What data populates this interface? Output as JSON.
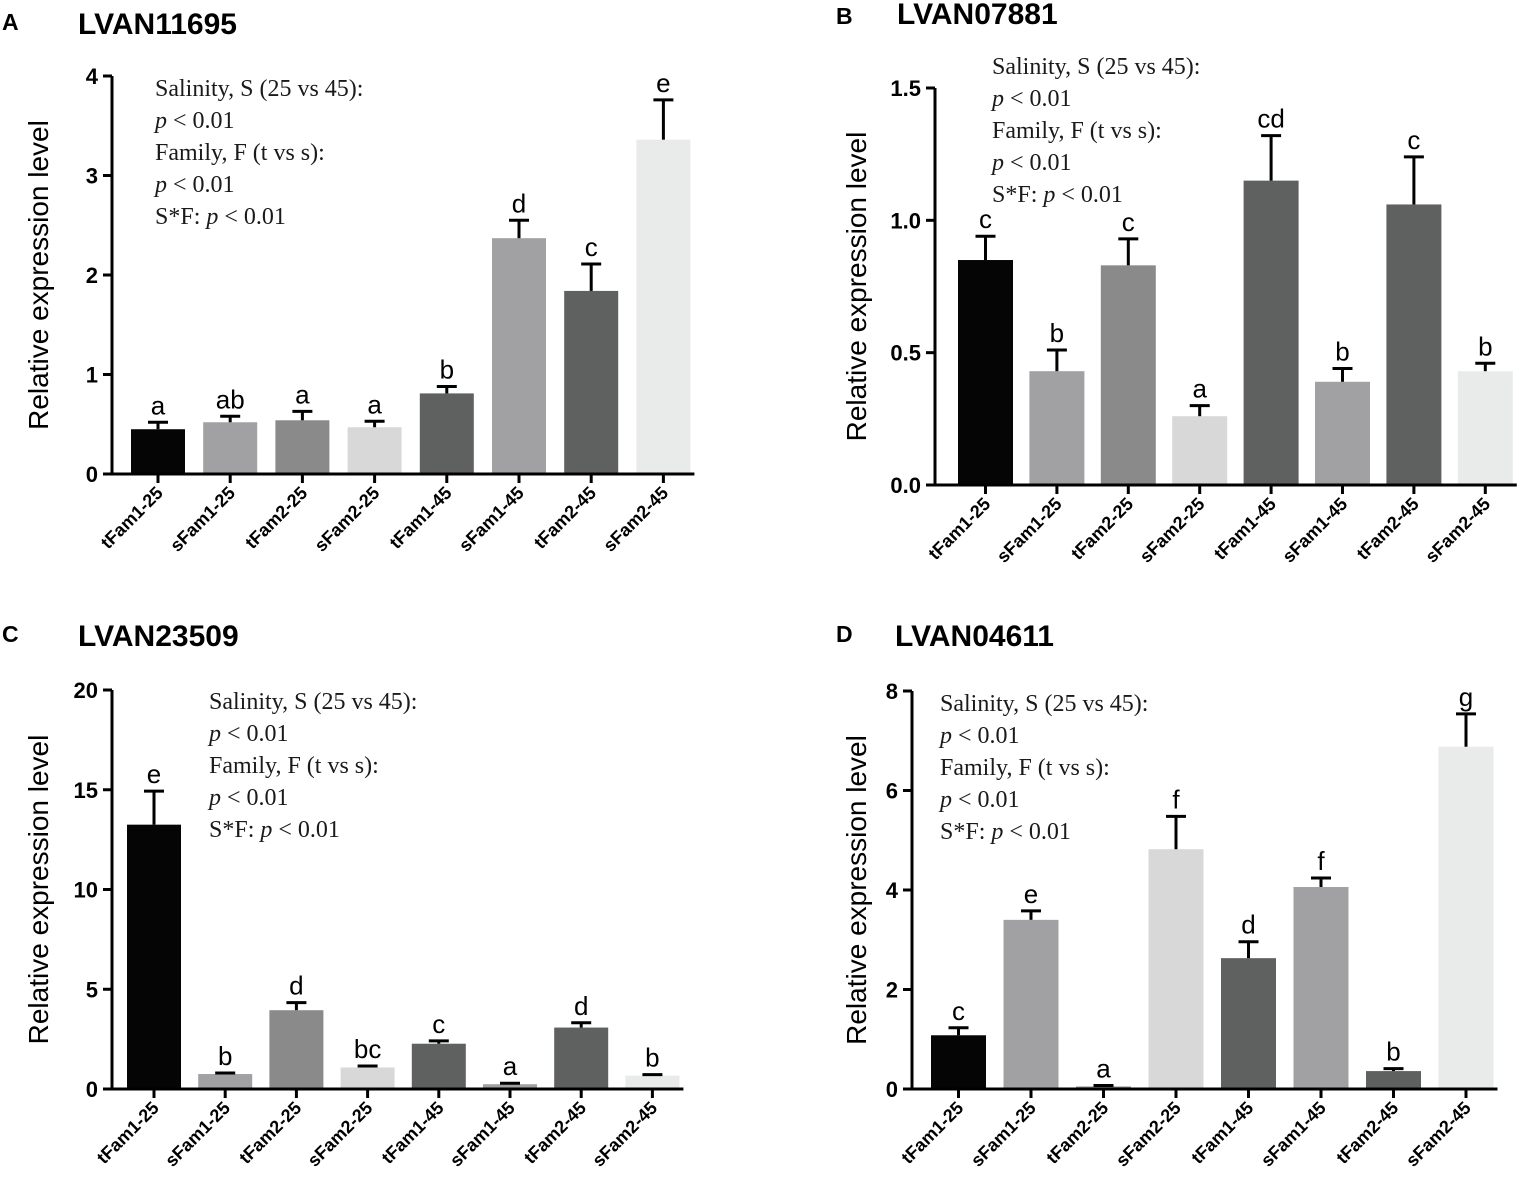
{
  "figure": {
    "colors": [
      "#050505",
      "#a1a1a3",
      "#8a8a8a",
      "#d8d8d8",
      "#5f6060",
      "#a1a1a3",
      "#5f6060",
      "#e9eaea"
    ]
  },
  "chart_data": [
    {
      "panel": "A",
      "type": "bar",
      "title": "LVAN11695",
      "ylabel": "Relative expression level",
      "xlabel": "",
      "ylim": [
        0,
        4
      ],
      "yticks": [
        "0",
        "1",
        "2",
        "3",
        "4"
      ],
      "categories": [
        "tFam1-25",
        "sFam1-25",
        "tFam2-25",
        "sFam2-25",
        "tFam1-45",
        "sFam1-45",
        "tFam2-45",
        "sFam2-45"
      ],
      "values": [
        0.45,
        0.52,
        0.54,
        0.47,
        0.81,
        2.37,
        1.84,
        3.36
      ],
      "errors": [
        0.07,
        0.06,
        0.09,
        0.06,
        0.07,
        0.18,
        0.27,
        0.4
      ],
      "significance_letters": [
        "a",
        "ab",
        "a",
        "a",
        "b",
        "d",
        "c",
        "e"
      ],
      "annotation_lines": [
        {
          "main": "Salinity, S (25 vs 45):"
        },
        {
          "italic": "p",
          "main": " < 0.01"
        },
        {
          "main": "Family, F  (t vs s):"
        },
        {
          "italic": "p",
          "main": " < 0.01"
        },
        {
          "prefix": "S*F: ",
          "italic": "p",
          "main": " < 0.01"
        }
      ]
    },
    {
      "panel": "B",
      "type": "bar",
      "title": "LVAN07881",
      "ylabel": "Relative expression level",
      "xlabel": "",
      "ylim": [
        0,
        1.5
      ],
      "yticks": [
        "0.0",
        "0.5",
        "1.0",
        "1.5"
      ],
      "categories": [
        "tFam1-25",
        "sFam1-25",
        "tFam2-25",
        "sFam2-25",
        "tFam1-45",
        "sFam1-45",
        "tFam2-45",
        "sFam2-45"
      ],
      "values": [
        0.85,
        0.43,
        0.83,
        0.26,
        1.15,
        0.39,
        1.06,
        0.43
      ],
      "errors": [
        0.09,
        0.08,
        0.1,
        0.04,
        0.17,
        0.05,
        0.18,
        0.03
      ],
      "significance_letters": [
        "c",
        "b",
        "c",
        "a",
        "cd",
        "b",
        "c",
        "b"
      ],
      "annotation_lines": [
        {
          "main": "Salinity, S (25 vs 45):"
        },
        {
          "italic": "p",
          "main": " < 0.01"
        },
        {
          "main": "Family, F  (t vs s):"
        },
        {
          "italic": "p",
          "main": " < 0.01"
        },
        {
          "prefix": "S*F: ",
          "italic": "p",
          "main": " < 0.01"
        }
      ]
    },
    {
      "panel": "C",
      "type": "bar",
      "title": "LVAN23509",
      "ylabel": "Relative expression level",
      "xlabel": "",
      "ylim": [
        0,
        20
      ],
      "yticks": [
        "0",
        "5",
        "10",
        "15",
        "20"
      ],
      "categories": [
        "tFam1-25",
        "sFam1-25",
        "tFam2-25",
        "sFam2-25",
        "tFam1-45",
        "sFam1-45",
        "tFam2-45",
        "sFam2-45"
      ],
      "values": [
        13.25,
        0.75,
        3.95,
        1.08,
        2.27,
        0.24,
        3.08,
        0.67
      ],
      "errors": [
        1.68,
        0.05,
        0.38,
        0.07,
        0.14,
        0.05,
        0.24,
        0.05
      ],
      "significance_letters": [
        "e",
        "b",
        "d",
        "bc",
        "c",
        "a",
        "d",
        "b"
      ],
      "annotation_lines": [
        {
          "main": "Salinity, S (25 vs 45):"
        },
        {
          "italic": "p",
          "main": " < 0.01"
        },
        {
          "main": "Family, F  (t vs s):"
        },
        {
          "italic": "p",
          "main": " < 0.01"
        },
        {
          "prefix": "S*F: ",
          "italic": "p",
          "main": " < 0.01"
        }
      ]
    },
    {
      "panel": "D",
      "type": "bar",
      "title": "LVAN04611",
      "ylabel": "Relative expression level",
      "xlabel": "",
      "ylim": [
        0,
        8
      ],
      "yticks": [
        "0",
        "2",
        "4",
        "6",
        "8"
      ],
      "categories": [
        "tFam1-25",
        "sFam1-25",
        "tFam2-25",
        "sFam2-25",
        "tFam1-45",
        "sFam1-45",
        "tFam2-45",
        "sFam2-45"
      ],
      "values": [
        1.08,
        3.4,
        0.05,
        4.82,
        2.63,
        4.06,
        0.36,
        6.88
      ],
      "errors": [
        0.15,
        0.18,
        0.02,
        0.66,
        0.33,
        0.18,
        0.05,
        0.66
      ],
      "significance_letters": [
        "c",
        "e",
        "a",
        "f",
        "d",
        "f",
        "b",
        "g"
      ],
      "annotation_lines": [
        {
          "main": "Salinity, S (25 vs 45):"
        },
        {
          "italic": "p",
          "main": " < 0.01"
        },
        {
          "main": "Family, F  (t vs s):"
        },
        {
          "italic": "p",
          "main": " < 0.01"
        },
        {
          "prefix": "S*F: ",
          "italic": "p",
          "main": " < 0.01"
        }
      ]
    }
  ]
}
